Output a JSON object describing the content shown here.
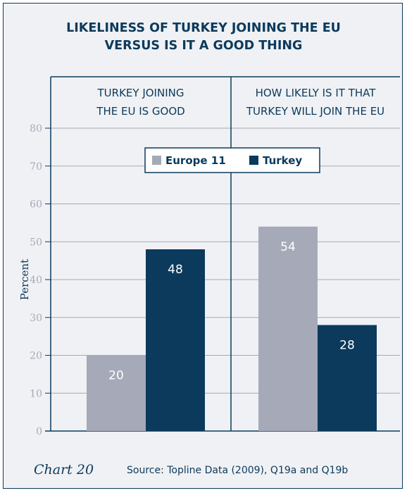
{
  "chart_data": {
    "type": "bar",
    "title_lines": [
      "LIKELINESS OF TURKEY JOINING THE EU",
      "VERSUS IS IT A GOOD THING"
    ],
    "ylabel": "Percent",
    "ylim": [
      0,
      80
    ],
    "yticks": [
      0,
      10,
      20,
      30,
      40,
      50,
      60,
      70,
      80
    ],
    "grid": true,
    "legend_position": "top-center",
    "categories": [
      [
        "TURKEY JOINING",
        "THE EU IS GOOD"
      ],
      [
        "HOW LIKELY IS IT THAT",
        "TURKEY WILL JOIN THE EU"
      ]
    ],
    "series": [
      {
        "name": "Europe 11",
        "values": [
          20,
          54
        ],
        "color": "#a6a9b8"
      },
      {
        "name": "Turkey",
        "values": [
          48,
          28
        ],
        "color": "#0b3a5c"
      }
    ],
    "colors": {
      "accent": "#0b3a5c",
      "background": "#f0f1f4",
      "grid": "#a6a9b8",
      "label_on_bar": "#ffffff"
    }
  },
  "footer": {
    "chart_label": "Chart 20",
    "source": "Source: Topline Data (2009), Q19a and Q19b"
  }
}
